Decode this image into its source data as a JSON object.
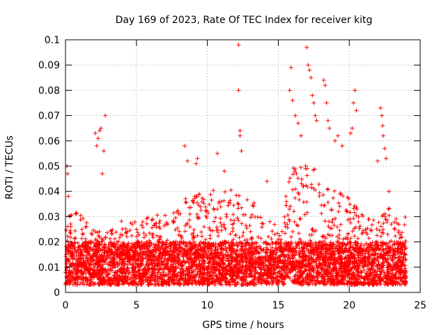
{
  "chart_data": {
    "type": "scatter",
    "title": "Day 169 of 2023, Rate Of TEC Index for receiver kitg",
    "xlabel": "GPS time / hours",
    "ylabel": "ROTI / TECUs",
    "xlim": [
      0,
      25
    ],
    "ylim": [
      0,
      0.1
    ],
    "x_ticks": [
      0,
      5,
      10,
      15,
      20,
      25
    ],
    "x_tick_labels": [
      "0",
      "5",
      "10",
      "15",
      "20",
      "25"
    ],
    "y_ticks": [
      0,
      0.01,
      0.02,
      0.03,
      0.04,
      0.05,
      0.06,
      0.07,
      0.08,
      0.09,
      0.1
    ],
    "y_tick_labels": [
      "0",
      "0.01",
      "0.02",
      "0.03",
      "0.04",
      "0.05",
      "0.06",
      "0.07",
      "0.08",
      "0.09",
      "0.1"
    ],
    "grid": true,
    "marker": "+",
    "marker_color": "#ff0000",
    "data_x_range": [
      0,
      24
    ],
    "baseline_band": [
      0.003,
      0.02
    ],
    "envelope": [
      [
        0,
        0.03
      ],
      [
        1,
        0.032
      ],
      [
        2,
        0.027
      ],
      [
        3,
        0.025
      ],
      [
        4,
        0.03
      ],
      [
        5,
        0.029
      ],
      [
        6,
        0.03
      ],
      [
        7,
        0.032
      ],
      [
        8,
        0.035
      ],
      [
        9,
        0.04
      ],
      [
        10,
        0.04
      ],
      [
        11,
        0.042
      ],
      [
        12,
        0.04
      ],
      [
        13,
        0.038
      ],
      [
        14,
        0.03
      ],
      [
        15,
        0.026
      ],
      [
        16,
        0.05
      ],
      [
        17,
        0.055
      ],
      [
        18,
        0.045
      ],
      [
        19,
        0.04
      ],
      [
        20,
        0.038
      ],
      [
        21,
        0.03
      ],
      [
        22,
        0.03
      ],
      [
        23,
        0.034
      ],
      [
        24,
        0.03
      ]
    ],
    "outliers": [
      [
        0.1,
        0.05
      ],
      [
        0.15,
        0.047
      ],
      [
        0.2,
        0.038
      ],
      [
        2.1,
        0.063
      ],
      [
        2.2,
        0.058
      ],
      [
        2.3,
        0.061
      ],
      [
        2.4,
        0.064
      ],
      [
        2.5,
        0.065
      ],
      [
        2.7,
        0.056
      ],
      [
        2.8,
        0.07
      ],
      [
        2.6,
        0.047
      ],
      [
        8.4,
        0.058
      ],
      [
        8.6,
        0.052
      ],
      [
        9.2,
        0.051
      ],
      [
        9.3,
        0.053
      ],
      [
        10.7,
        0.055
      ],
      [
        11.2,
        0.048
      ],
      [
        12.2,
        0.098
      ],
      [
        12.2,
        0.08
      ],
      [
        12.3,
        0.064
      ],
      [
        12.3,
        0.062
      ],
      [
        12.4,
        0.056
      ],
      [
        14.2,
        0.044
      ],
      [
        15.8,
        0.08
      ],
      [
        15.9,
        0.089
      ],
      [
        16.0,
        0.076
      ],
      [
        16.2,
        0.07
      ],
      [
        16.4,
        0.067
      ],
      [
        16.6,
        0.062
      ],
      [
        17.0,
        0.097
      ],
      [
        17.1,
        0.09
      ],
      [
        17.2,
        0.088
      ],
      [
        17.3,
        0.085
      ],
      [
        17.4,
        0.078
      ],
      [
        17.5,
        0.075
      ],
      [
        17.6,
        0.07
      ],
      [
        17.7,
        0.068
      ],
      [
        18.2,
        0.084
      ],
      [
        18.3,
        0.082
      ],
      [
        18.4,
        0.075
      ],
      [
        18.5,
        0.068
      ],
      [
        18.6,
        0.065
      ],
      [
        19.0,
        0.06
      ],
      [
        19.2,
        0.062
      ],
      [
        19.5,
        0.058
      ],
      [
        20.1,
        0.063
      ],
      [
        20.2,
        0.065
      ],
      [
        20.3,
        0.075
      ],
      [
        20.4,
        0.08
      ],
      [
        20.5,
        0.072
      ],
      [
        22.2,
        0.073
      ],
      [
        22.3,
        0.07
      ],
      [
        22.35,
        0.066
      ],
      [
        22.4,
        0.062
      ],
      [
        22.5,
        0.057
      ],
      [
        22.6,
        0.053
      ],
      [
        22.0,
        0.052
      ],
      [
        22.8,
        0.04
      ]
    ]
  }
}
